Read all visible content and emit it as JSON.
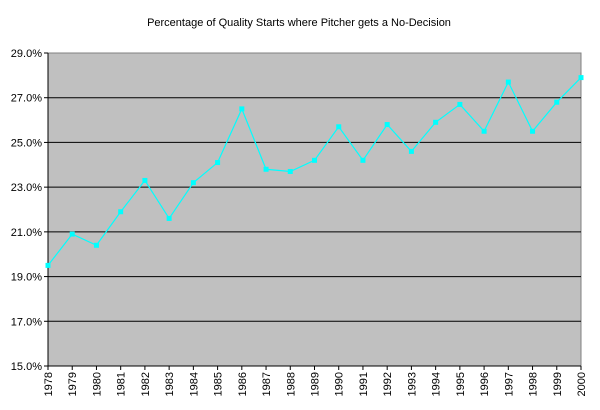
{
  "chart_data": {
    "type": "line",
    "title": "Percentage of Quality Starts where Pitcher gets a No-Decision",
    "xlabel": "",
    "ylabel": "",
    "categories": [
      "1978",
      "1979",
      "1980",
      "1981",
      "1982",
      "1983",
      "1984",
      "1985",
      "1986",
      "1987",
      "1988",
      "1989",
      "1990",
      "1991",
      "1992",
      "1993",
      "1994",
      "1995",
      "1996",
      "1997",
      "1998",
      "1999",
      "2000"
    ],
    "series": [
      {
        "values": [
          19.5,
          20.9,
          20.4,
          21.9,
          23.3,
          21.6,
          23.2,
          24.1,
          26.5,
          23.8,
          23.7,
          24.2,
          25.7,
          24.2,
          25.8,
          24.6,
          25.9,
          26.7,
          25.5,
          27.7,
          25.5,
          26.8,
          27.9
        ]
      }
    ],
    "ylim": [
      15.0,
      29.0
    ],
    "yticks": [
      15.0,
      17.0,
      19.0,
      21.0,
      23.0,
      25.0,
      27.0,
      29.0
    ],
    "ytick_labels": [
      "15.0%",
      "17.0%",
      "19.0%",
      "21.0%",
      "23.0%",
      "25.0%",
      "27.0%",
      "29.0%"
    ],
    "grid": true,
    "legend": "none",
    "colors": {
      "plot_background": "#c0c0c0",
      "line": "#00ffff",
      "gridline": "#000000"
    }
  }
}
